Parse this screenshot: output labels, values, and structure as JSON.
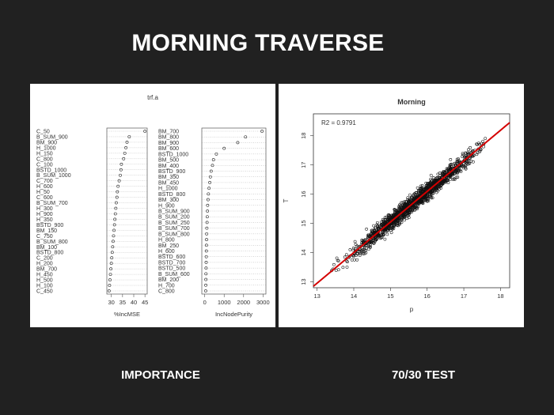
{
  "slide": {
    "title": "MORNING TRAVERSE"
  },
  "captions": {
    "left": "IMPORTANCE",
    "right": "70/30 TEST"
  },
  "chart_data": [
    {
      "type": "scatter",
      "title": "trf.a",
      "subplots": [
        {
          "xlabel": "%IncMSE",
          "xlim": [
            28,
            46
          ],
          "xticks": [
            30,
            35,
            40,
            45
          ],
          "labels": [
            "C_50",
            "B_SUM_900",
            "BM_900",
            "H_1000",
            "H_150",
            "C_800",
            "C_100",
            "BSTD_1000",
            "B_SUM_1000",
            "C_700",
            "H_600",
            "H_50",
            "C_600",
            "B_SUM_700",
            "H_300",
            "H_900",
            "H_350",
            "BSTD_900",
            "BM_150",
            "C_750",
            "B_SUM_800",
            "BM_100",
            "BSTD_800",
            "C_200",
            "H_200",
            "BM_700",
            "H_450",
            "H_500",
            "H_100",
            "C_450"
          ],
          "values": [
            45,
            38,
            37,
            36.5,
            36,
            35.5,
            34.5,
            34.3,
            34,
            33.5,
            33,
            32.7,
            32.5,
            32.2,
            32,
            31.8,
            31.6,
            31.4,
            31.2,
            31,
            30.8,
            30.6,
            30.4,
            30.2,
            30,
            29.8,
            29.6,
            29.4,
            29.2,
            29
          ]
        },
        {
          "xlabel": "IncNodePurity",
          "xlim": [
            -150,
            3150
          ],
          "xticks": [
            0,
            1000,
            2000,
            3000
          ],
          "labels": [
            "BM_700",
            "BM_800",
            "BM_900",
            "BM_600",
            "BSTD_1000",
            "BM_500",
            "BM_400",
            "BSTD_900",
            "BM_350",
            "BM_450",
            "H_1000",
            "BSTD_800",
            "BM_300",
            "H_900",
            "B_SUM_900",
            "B_SUM_200",
            "B_SUM_250",
            "B_SUM_700",
            "B_SUM_800",
            "H_800",
            "BM_250",
            "H_600",
            "BSTD_600",
            "BSTD_700",
            "BSTD_500",
            "B_SUM_600",
            "BM_200",
            "H_700",
            "C_800"
          ],
          "values": [
            2950,
            2100,
            1700,
            1000,
            600,
            450,
            400,
            330,
            290,
            260,
            220,
            190,
            170,
            150,
            140,
            130,
            120,
            110,
            100,
            95,
            90,
            85,
            80,
            75,
            70,
            65,
            60,
            55,
            50
          ]
        }
      ]
    },
    {
      "type": "scatter",
      "title": "Morning",
      "annotation": "R2 =  0.9791",
      "xlabel": "p",
      "ylabel": "T",
      "xlim": [
        12.9,
        18.25
      ],
      "ylim": [
        12.8,
        18.75
      ],
      "xticks": [
        13,
        14,
        15,
        16,
        17,
        18
      ],
      "yticks": [
        13,
        14,
        15,
        16,
        17,
        18
      ],
      "fit_line": {
        "x": [
          12.9,
          18.25
        ],
        "y": [
          12.85,
          18.45
        ],
        "color": "#d40000"
      },
      "point_cloud": {
        "x_range": [
          13.2,
          18.0
        ],
        "spread": 0.3,
        "count": 1400
      }
    }
  ],
  "colors": {
    "background": "#212121",
    "panel": "#ffffff",
    "fit_line": "#d40000"
  }
}
